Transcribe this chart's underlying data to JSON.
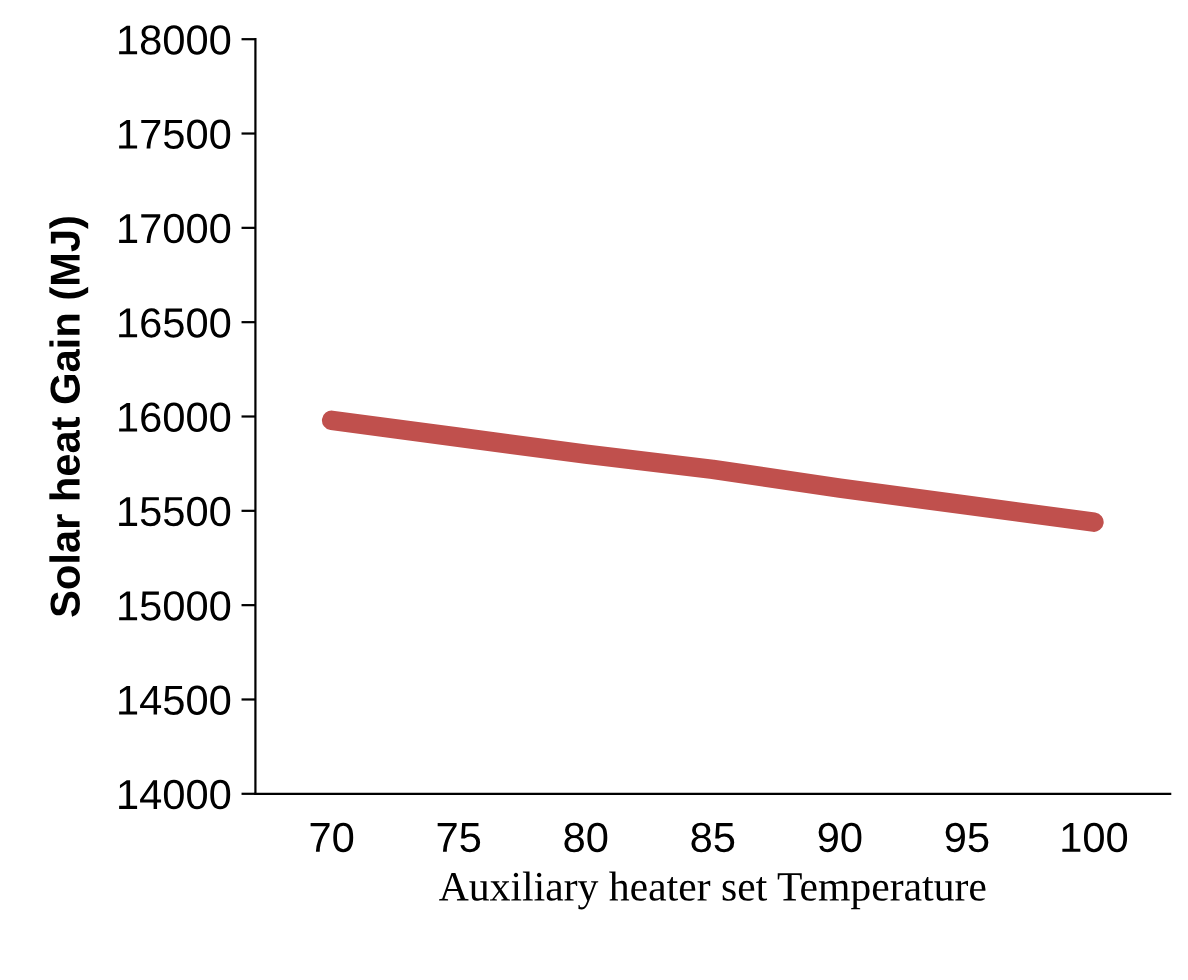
{
  "chart_data": {
    "type": "line",
    "xlabel": "Auxiliary heater set Temperature",
    "ylabel": "Solar heat Gain (MJ)",
    "categories": [
      "70",
      "75",
      "80",
      "85",
      "90",
      "95",
      "100"
    ],
    "series": [
      {
        "color": "#c0504d",
        "values": [
          15980,
          15890,
          15800,
          15720,
          15620,
          15530,
          15440
        ]
      }
    ],
    "ylim": [
      14000,
      18000
    ],
    "yticks": [
      14000,
      14500,
      15000,
      15500,
      16000,
      16500,
      17000,
      17500,
      18000
    ],
    "grid": false,
    "legend": false,
    "marker": "none",
    "line_style": "solid"
  }
}
